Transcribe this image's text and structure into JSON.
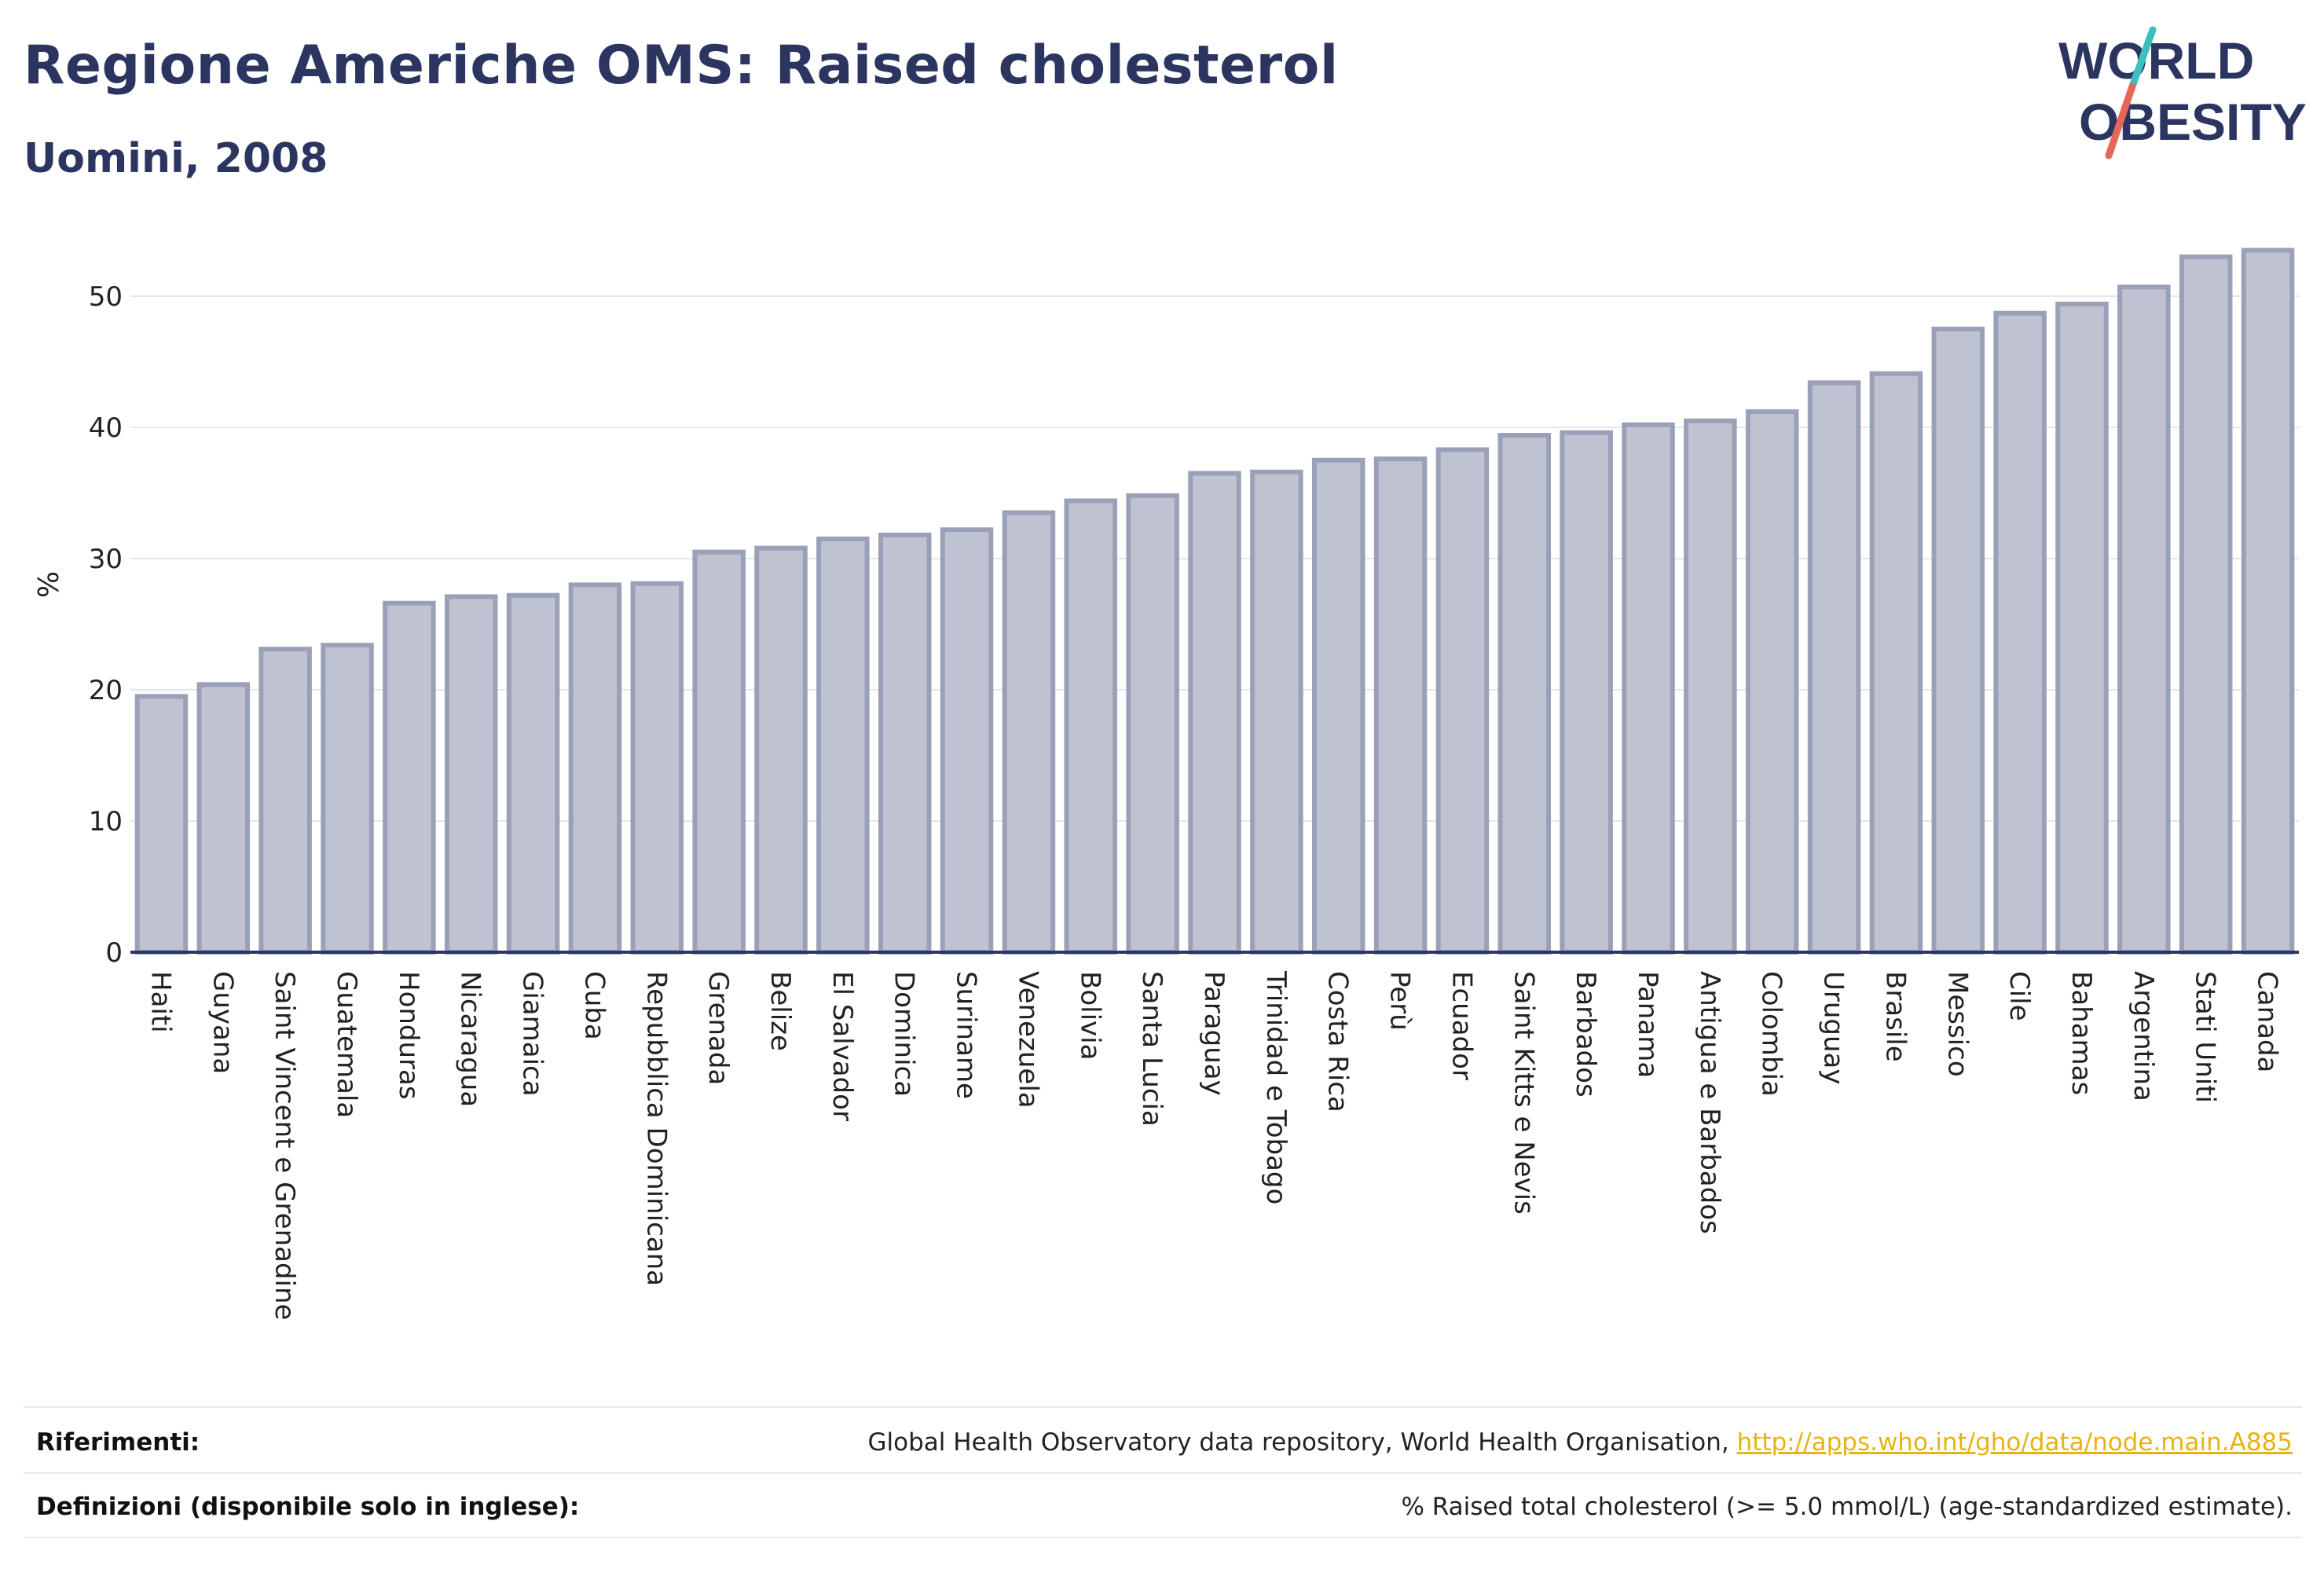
{
  "header": {
    "title": "Regione Americhe OMS: Raised cholesterol",
    "subtitle": "Uomini, 2008"
  },
  "logo": {
    "line1": "WORLD",
    "line2": "OBESITY"
  },
  "colors": {
    "title": "#2b3560",
    "bar_fill": "#bfc2d0",
    "bar_stroke": "#9aa0b8",
    "axis": "#2b3560",
    "grid": "#e5e6ea",
    "link": "#e8b312",
    "logo_slash_teal": "#3bbfbf",
    "logo_slash_red": "#e5675a"
  },
  "footer": {
    "references_label": "Riferimenti:",
    "references_text": "Global Health Observatory data repository, World Health Organisation, ",
    "references_link": "http://apps.who.int/gho/data/node.main.A885",
    "definitions_label": "Definizioni (disponibile solo in inglese):",
    "definitions_text": "% Raised total cholesterol (>= 5.0 mmol/L) (age-standardized estimate)."
  },
  "chart_data": {
    "type": "bar",
    "ylabel": "%",
    "ylim": [
      0,
      55
    ],
    "yticks": [
      0,
      10,
      20,
      30,
      40,
      50
    ],
    "grid": true,
    "categories": [
      "Haiti",
      "Guyana",
      "Saint Vincent e Grenadine",
      "Guatemala",
      "Honduras",
      "Nicaragua",
      "Giamaica",
      "Cuba",
      "Repubblica Dominicana",
      "Grenada",
      "Belize",
      "El Salvador",
      "Dominica",
      "Suriname",
      "Venezuela",
      "Bolivia",
      "Santa Lucia",
      "Paraguay",
      "Trinidad e Tobago",
      "Costa Rica",
      "Perù",
      "Ecuador",
      "Saint Kitts e Nevis",
      "Barbados",
      "Panama",
      "Antigua e Barbados",
      "Colombia",
      "Uruguay",
      "Brasile",
      "Messico",
      "Cile",
      "Bahamas",
      "Argentina",
      "Stati Uniti",
      "Canada"
    ],
    "values": [
      19.5,
      20.4,
      23.1,
      23.4,
      26.6,
      27.1,
      27.2,
      28.0,
      28.1,
      30.5,
      30.8,
      31.5,
      31.8,
      32.2,
      33.5,
      34.4,
      34.8,
      36.5,
      36.6,
      37.5,
      37.6,
      38.3,
      39.4,
      39.6,
      40.2,
      40.5,
      41.2,
      43.4,
      44.1,
      47.5,
      48.7,
      49.4,
      50.7,
      53.0,
      53.5
    ]
  }
}
